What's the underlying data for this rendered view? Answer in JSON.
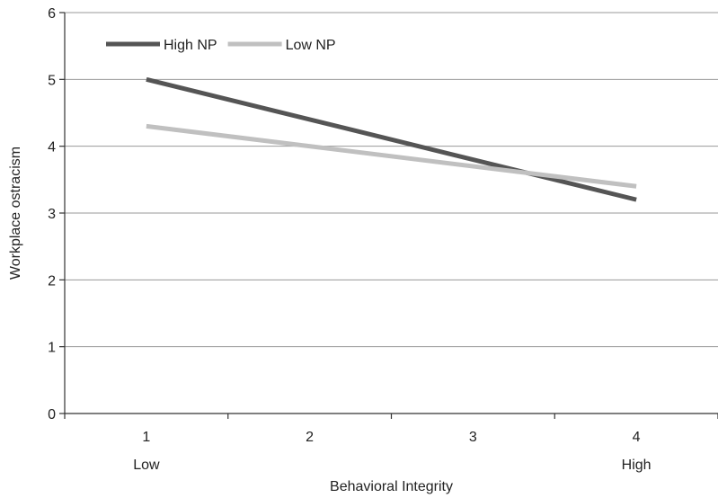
{
  "chart_data": {
    "type": "line",
    "xlabel": "Behavioral Integrity",
    "ylabel": "Workplace ostracism",
    "x": [
      1,
      2,
      3,
      4
    ],
    "xlim": [
      0.5,
      4.5
    ],
    "ylim": [
      0,
      6
    ],
    "yticks": [
      0,
      1,
      2,
      3,
      4,
      5,
      6
    ],
    "xticks": [
      1,
      2,
      3,
      4
    ],
    "x_sublabels": [
      {
        "x": 1,
        "label": "Low"
      },
      {
        "x": 4,
        "label": "High"
      }
    ],
    "grid": true,
    "legend_position": "top-left",
    "series": [
      {
        "name": "High NP",
        "color": "#555555",
        "points": [
          {
            "x": 1,
            "y": 5.0
          },
          {
            "x": 4,
            "y": 3.2
          }
        ]
      },
      {
        "name": "Low NP",
        "color": "#c0c0c0",
        "points": [
          {
            "x": 1,
            "y": 4.3
          },
          {
            "x": 4,
            "y": 3.4
          }
        ]
      }
    ]
  }
}
